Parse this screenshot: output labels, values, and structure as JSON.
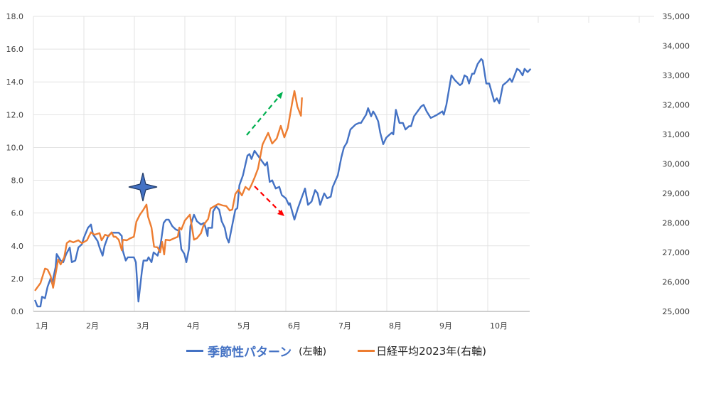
{
  "chart_data": {
    "type": "line",
    "title": "",
    "x_tick_labels": [
      "1月",
      "2月",
      "3月",
      "4月",
      "5月",
      "6月",
      "7月",
      "8月",
      "9月",
      "10月"
    ],
    "x_unit": "month",
    "xlim": [
      1,
      13
    ],
    "y_left": {
      "ylim": [
        0,
        18
      ],
      "tick_labels": [
        "0.0",
        "2.0",
        "4.0",
        "6.0",
        "8.0",
        "10.0",
        "12.0",
        "14.0",
        "16.0",
        "18.0"
      ]
    },
    "y_right": {
      "ylim": [
        25000,
        35000
      ],
      "tick_labels": [
        "25,000",
        "26,000",
        "27,000",
        "28,000",
        "29,000",
        "30,000",
        "31,000",
        "32,000",
        "33,000",
        "34,000",
        "35,000"
      ]
    },
    "grid": true,
    "legend_placement": "bottom",
    "series": [
      {
        "name": "季節性パターン",
        "axis_note": "(左軸)",
        "axis": "left",
        "color": "#4472C4",
        "points": [
          [
            1.03,
            0.7
          ],
          [
            1.08,
            0.3
          ],
          [
            1.14,
            0.3
          ],
          [
            1.17,
            0.9
          ],
          [
            1.23,
            0.8
          ],
          [
            1.28,
            1.5
          ],
          [
            1.34,
            2.0
          ],
          [
            1.37,
            1.7
          ],
          [
            1.44,
            2.7
          ],
          [
            1.46,
            3.5
          ],
          [
            1.54,
            3.1
          ],
          [
            1.59,
            3.0
          ],
          [
            1.65,
            3.5
          ],
          [
            1.72,
            3.9
          ],
          [
            1.76,
            3.0
          ],
          [
            1.83,
            3.1
          ],
          [
            1.89,
            3.9
          ],
          [
            1.96,
            4.1
          ],
          [
            2.0,
            4.5
          ],
          [
            2.08,
            5.1
          ],
          [
            2.14,
            5.3
          ],
          [
            2.18,
            4.7
          ],
          [
            2.27,
            4.3
          ],
          [
            2.31,
            3.9
          ],
          [
            2.37,
            3.4
          ],
          [
            2.41,
            4.0
          ],
          [
            2.48,
            4.6
          ],
          [
            2.55,
            4.8
          ],
          [
            2.62,
            4.8
          ],
          [
            2.69,
            4.8
          ],
          [
            2.75,
            4.6
          ],
          [
            2.77,
            3.7
          ],
          [
            2.83,
            3.1
          ],
          [
            2.87,
            3.3
          ],
          [
            2.99,
            3.3
          ],
          [
            3.03,
            3.0
          ],
          [
            3.08,
            0.6
          ],
          [
            3.15,
            2.5
          ],
          [
            3.18,
            3.1
          ],
          [
            3.25,
            3.1
          ],
          [
            3.28,
            3.3
          ],
          [
            3.34,
            3.0
          ],
          [
            3.38,
            3.6
          ],
          [
            3.46,
            3.4
          ],
          [
            3.52,
            4.1
          ],
          [
            3.58,
            5.4
          ],
          [
            3.63,
            5.6
          ],
          [
            3.68,
            5.6
          ],
          [
            3.75,
            5.2
          ],
          [
            3.82,
            5.0
          ],
          [
            3.89,
            4.9
          ],
          [
            3.93,
            3.8
          ],
          [
            3.99,
            3.5
          ],
          [
            4.03,
            3.0
          ],
          [
            4.08,
            3.8
          ],
          [
            4.11,
            5.2
          ],
          [
            4.18,
            5.9
          ],
          [
            4.24,
            5.5
          ],
          [
            4.32,
            5.3
          ],
          [
            4.38,
            5.4
          ],
          [
            4.41,
            5.1
          ],
          [
            4.45,
            4.6
          ],
          [
            4.46,
            5.1
          ],
          [
            4.54,
            5.1
          ],
          [
            4.56,
            6.1
          ],
          [
            4.62,
            6.4
          ],
          [
            4.68,
            6.2
          ],
          [
            4.73,
            5.5
          ],
          [
            4.79,
            5.1
          ],
          [
            4.83,
            4.5
          ],
          [
            4.87,
            4.2
          ],
          [
            4.96,
            5.6
          ],
          [
            5.0,
            6.2
          ],
          [
            5.04,
            6.3
          ],
          [
            5.08,
            7.7
          ],
          [
            5.15,
            8.3
          ],
          [
            5.18,
            8.7
          ],
          [
            5.24,
            9.5
          ],
          [
            5.28,
            9.6
          ],
          [
            5.32,
            9.3
          ],
          [
            5.38,
            9.8
          ],
          [
            5.45,
            9.5
          ],
          [
            5.52,
            9.2
          ],
          [
            5.59,
            8.9
          ],
          [
            5.63,
            9.1
          ],
          [
            5.68,
            7.9
          ],
          [
            5.73,
            8.0
          ],
          [
            5.8,
            7.5
          ],
          [
            5.87,
            7.6
          ],
          [
            5.92,
            7.1
          ],
          [
            6.0,
            6.9
          ],
          [
            6.06,
            6.5
          ],
          [
            6.08,
            6.6
          ],
          [
            6.17,
            5.6
          ],
          [
            6.24,
            6.3
          ],
          [
            6.31,
            6.9
          ],
          [
            6.38,
            7.5
          ],
          [
            6.44,
            6.5
          ],
          [
            6.51,
            6.7
          ],
          [
            6.58,
            7.4
          ],
          [
            6.63,
            7.2
          ],
          [
            6.68,
            6.5
          ],
          [
            6.76,
            7.2
          ],
          [
            6.82,
            6.9
          ],
          [
            6.89,
            7.0
          ],
          [
            6.93,
            7.6
          ],
          [
            7.03,
            8.3
          ],
          [
            7.1,
            9.4
          ],
          [
            7.15,
            10.0
          ],
          [
            7.21,
            10.3
          ],
          [
            7.28,
            11.1
          ],
          [
            7.38,
            11.4
          ],
          [
            7.45,
            11.5
          ],
          [
            7.49,
            11.5
          ],
          [
            7.55,
            11.8
          ],
          [
            7.59,
            12.0
          ],
          [
            7.63,
            12.4
          ],
          [
            7.69,
            11.9
          ],
          [
            7.73,
            12.2
          ],
          [
            7.77,
            12.0
          ],
          [
            7.83,
            11.6
          ],
          [
            7.87,
            10.9
          ],
          [
            7.93,
            10.2
          ],
          [
            7.99,
            10.6
          ],
          [
            8.06,
            10.8
          ],
          [
            8.1,
            10.9
          ],
          [
            8.13,
            10.8
          ],
          [
            8.18,
            12.3
          ],
          [
            8.25,
            11.5
          ],
          [
            8.32,
            11.5
          ],
          [
            8.37,
            11.1
          ],
          [
            8.44,
            11.3
          ],
          [
            8.48,
            11.3
          ],
          [
            8.54,
            11.9
          ],
          [
            8.61,
            12.2
          ],
          [
            8.68,
            12.5
          ],
          [
            8.73,
            12.6
          ],
          [
            8.79,
            12.2
          ],
          [
            8.87,
            11.8
          ],
          [
            8.94,
            11.9
          ],
          [
            9.0,
            12.0
          ],
          [
            9.1,
            12.2
          ],
          [
            9.13,
            12.0
          ],
          [
            9.18,
            12.6
          ],
          [
            9.28,
            14.4
          ],
          [
            9.35,
            14.1
          ],
          [
            9.45,
            13.8
          ],
          [
            9.49,
            13.9
          ],
          [
            9.54,
            14.4
          ],
          [
            9.59,
            14.3
          ],
          [
            9.63,
            13.9
          ],
          [
            9.69,
            14.5
          ],
          [
            9.73,
            14.5
          ],
          [
            9.8,
            15.1
          ],
          [
            9.87,
            15.4
          ],
          [
            9.9,
            15.3
          ],
          [
            9.97,
            13.9
          ],
          [
            10.03,
            13.9
          ],
          [
            10.13,
            12.8
          ],
          [
            10.18,
            13.0
          ],
          [
            10.23,
            12.7
          ],
          [
            10.3,
            13.8
          ],
          [
            10.38,
            14.0
          ],
          [
            10.44,
            14.2
          ],
          [
            10.48,
            14.0
          ],
          [
            10.58,
            14.8
          ],
          [
            10.63,
            14.7
          ],
          [
            10.69,
            14.4
          ],
          [
            10.73,
            14.8
          ],
          [
            10.79,
            14.6
          ],
          [
            10.85,
            14.8
          ]
        ]
      },
      {
        "name": "日経平均2023年(右軸)",
        "axis": "right",
        "color": "#ED7D31",
        "points": [
          [
            1.03,
            25700
          ],
          [
            1.14,
            25960
          ],
          [
            1.23,
            26450
          ],
          [
            1.28,
            26420
          ],
          [
            1.34,
            26210
          ],
          [
            1.39,
            25800
          ],
          [
            1.49,
            26760
          ],
          [
            1.54,
            26590
          ],
          [
            1.61,
            26830
          ],
          [
            1.66,
            27310
          ],
          [
            1.72,
            27390
          ],
          [
            1.79,
            27340
          ],
          [
            1.89,
            27410
          ],
          [
            1.96,
            27310
          ],
          [
            2.06,
            27410
          ],
          [
            2.14,
            27680
          ],
          [
            2.21,
            27600
          ],
          [
            2.31,
            27650
          ],
          [
            2.35,
            27410
          ],
          [
            2.42,
            27600
          ],
          [
            2.49,
            27550
          ],
          [
            2.55,
            27680
          ],
          [
            2.59,
            27530
          ],
          [
            2.63,
            27530
          ],
          [
            2.69,
            27430
          ],
          [
            2.75,
            27070
          ],
          [
            2.77,
            27430
          ],
          [
            2.85,
            27410
          ],
          [
            2.92,
            27480
          ],
          [
            2.99,
            27530
          ],
          [
            3.04,
            28040
          ],
          [
            3.11,
            28280
          ],
          [
            3.18,
            28450
          ],
          [
            3.24,
            28620
          ],
          [
            3.27,
            28210
          ],
          [
            3.34,
            27840
          ],
          [
            3.39,
            27190
          ],
          [
            3.46,
            27170
          ],
          [
            3.51,
            27000
          ],
          [
            3.55,
            27360
          ],
          [
            3.59,
            26930
          ],
          [
            3.62,
            27430
          ],
          [
            3.7,
            27410
          ],
          [
            3.79,
            27480
          ],
          [
            3.86,
            27530
          ],
          [
            3.89,
            27840
          ],
          [
            3.93,
            27770
          ],
          [
            4.0,
            28080
          ],
          [
            4.1,
            28280
          ],
          [
            4.18,
            27430
          ],
          [
            4.24,
            27480
          ],
          [
            4.32,
            27650
          ],
          [
            4.37,
            27920
          ],
          [
            4.42,
            28040
          ],
          [
            4.46,
            28130
          ],
          [
            4.51,
            28490
          ],
          [
            4.59,
            28570
          ],
          [
            4.66,
            28640
          ],
          [
            4.75,
            28590
          ],
          [
            4.82,
            28570
          ],
          [
            4.89,
            28420
          ],
          [
            4.94,
            28450
          ],
          [
            5.0,
            28980
          ],
          [
            5.06,
            29120
          ],
          [
            5.13,
            28930
          ],
          [
            5.2,
            29220
          ],
          [
            5.27,
            29120
          ],
          [
            5.32,
            29290
          ],
          [
            5.38,
            29530
          ],
          [
            5.45,
            29840
          ],
          [
            5.54,
            30660
          ],
          [
            5.65,
            31050
          ],
          [
            5.73,
            30690
          ],
          [
            5.82,
            30860
          ],
          [
            5.9,
            31290
          ],
          [
            5.97,
            30900
          ],
          [
            6.04,
            31220
          ],
          [
            6.13,
            32110
          ],
          [
            6.17,
            32470
          ],
          [
            6.23,
            31940
          ],
          [
            6.3,
            31630
          ],
          [
            6.32,
            32250
          ]
        ]
      }
    ],
    "annotations": [
      {
        "type": "star",
        "color": "#4472C4"
      },
      {
        "type": "dashed-arrow",
        "direction": "up-right",
        "color": "#00B050"
      },
      {
        "type": "dashed-arrow",
        "direction": "down-right",
        "color": "#FF0000"
      }
    ]
  }
}
